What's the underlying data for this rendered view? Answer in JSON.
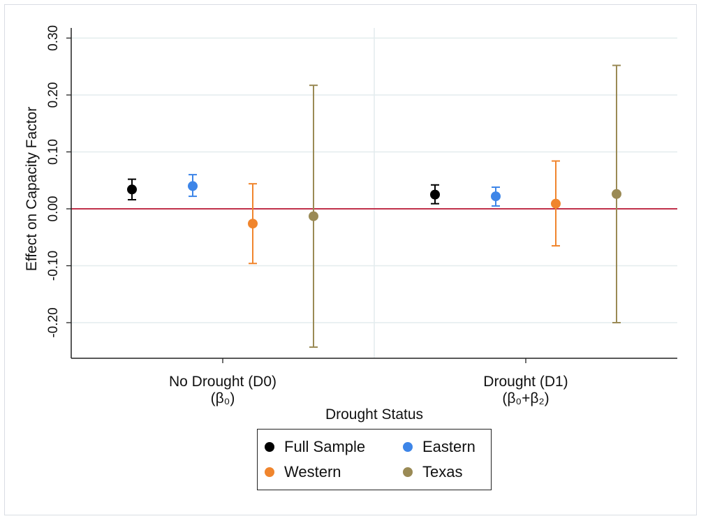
{
  "chart_data": {
    "type": "scatter",
    "subtype": "coefficient-plot-with-error-bars",
    "xlabel": "Drought Status",
    "ylabel": "Effect on Capacity Factor",
    "ylim": [
      -0.26,
      0.32
    ],
    "yticks": [
      "-0.20",
      "-0.10",
      "0.00",
      "0.10",
      "0.20",
      "0.30"
    ],
    "ytick_values": [
      -0.2,
      -0.1,
      0.0,
      0.1,
      0.2,
      0.3
    ],
    "reference_line": {
      "y": 0.0,
      "color": "#c0304a"
    },
    "grid": true,
    "categories": [
      {
        "label": "No Drought (D0)",
        "sublabel": "(β₀)"
      },
      {
        "label": "Drought (D1)",
        "sublabel": "(β₀+β₂)"
      }
    ],
    "series": [
      {
        "name": "Full Sample",
        "color": "#000000",
        "values": [
          0.034,
          0.025
        ],
        "lower": [
          0.016,
          0.009
        ],
        "upper": [
          0.052,
          0.042
        ]
      },
      {
        "name": "Eastern",
        "color": "#3d85e8",
        "values": [
          0.04,
          0.022
        ],
        "lower": [
          0.022,
          0.005
        ],
        "upper": [
          0.06,
          0.038
        ]
      },
      {
        "name": "Western",
        "color": "#f0852d",
        "values": [
          -0.026,
          0.009
        ],
        "lower": [
          -0.096,
          -0.065
        ],
        "upper": [
          0.044,
          0.084
        ]
      },
      {
        "name": "Texas",
        "color": "#9a8a55",
        "values": [
          -0.013,
          0.026
        ],
        "lower": [
          -0.243,
          -0.2
        ],
        "upper": [
          0.217,
          0.252
        ]
      }
    ],
    "legend": {
      "position": "bottom-center",
      "columns": 2
    }
  }
}
